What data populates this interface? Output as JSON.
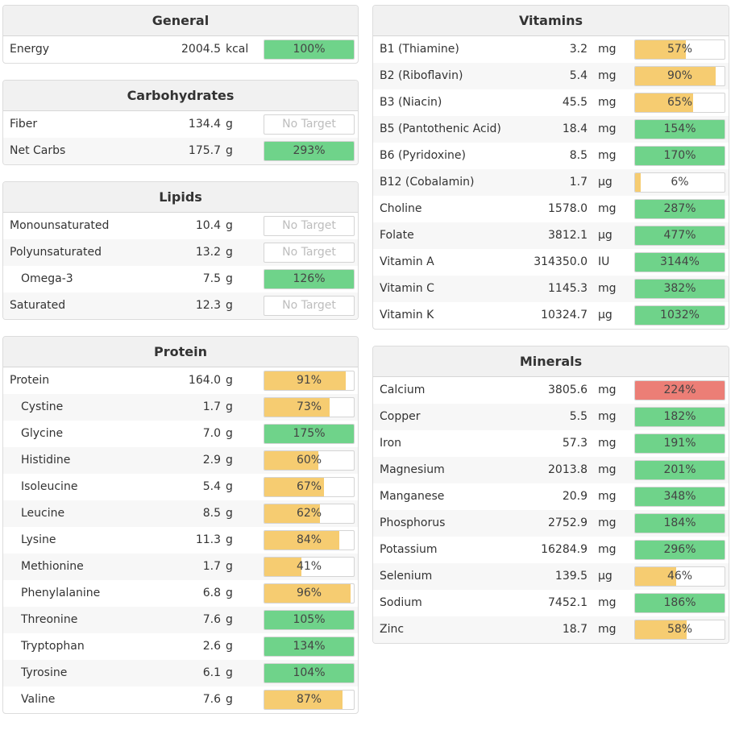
{
  "colors": {
    "green": "#6fd38a",
    "yellow": "#f6cc71",
    "red": "#ec7e76",
    "header_bg": "#f1f1f1"
  },
  "left_panels": [
    {
      "title": "General",
      "rows": [
        {
          "name": "Energy",
          "amount": "2004.5",
          "unit": "kcal",
          "label": "100%",
          "fill": 1.0,
          "color": "green"
        }
      ]
    },
    {
      "title": "Carbohydrates",
      "rows": [
        {
          "name": "Fiber",
          "amount": "134.4",
          "unit": "g",
          "label": "No Target",
          "fill": 0,
          "color": "none"
        },
        {
          "name": "Net Carbs",
          "amount": "175.7",
          "unit": "g",
          "label": "293%",
          "fill": 1.0,
          "color": "green"
        }
      ]
    },
    {
      "title": "Lipids",
      "rows": [
        {
          "name": "Monounsaturated",
          "amount": "10.4",
          "unit": "g",
          "label": "No Target",
          "fill": 0,
          "color": "none"
        },
        {
          "name": "Polyunsaturated",
          "amount": "13.2",
          "unit": "g",
          "label": "No Target",
          "fill": 0,
          "color": "none"
        },
        {
          "name": "Omega-3",
          "amount": "7.5",
          "unit": "g",
          "label": "126%",
          "fill": 1.0,
          "color": "green",
          "indent": true
        },
        {
          "name": "Saturated",
          "amount": "12.3",
          "unit": "g",
          "label": "No Target",
          "fill": 0,
          "color": "none"
        }
      ]
    },
    {
      "title": "Protein",
      "rows": [
        {
          "name": "Protein",
          "amount": "164.0",
          "unit": "g",
          "label": "91%",
          "fill": 0.91,
          "color": "yellow"
        },
        {
          "name": "Cystine",
          "amount": "1.7",
          "unit": "g",
          "label": "73%",
          "fill": 0.73,
          "color": "yellow",
          "indent": true
        },
        {
          "name": "Glycine",
          "amount": "7.0",
          "unit": "g",
          "label": "175%",
          "fill": 1.0,
          "color": "green",
          "indent": true
        },
        {
          "name": "Histidine",
          "amount": "2.9",
          "unit": "g",
          "label": "60%",
          "fill": 0.6,
          "color": "yellow",
          "indent": true
        },
        {
          "name": "Isoleucine",
          "amount": "5.4",
          "unit": "g",
          "label": "67%",
          "fill": 0.67,
          "color": "yellow",
          "indent": true
        },
        {
          "name": "Leucine",
          "amount": "8.5",
          "unit": "g",
          "label": "62%",
          "fill": 0.62,
          "color": "yellow",
          "indent": true
        },
        {
          "name": "Lysine",
          "amount": "11.3",
          "unit": "g",
          "label": "84%",
          "fill": 0.84,
          "color": "yellow",
          "indent": true
        },
        {
          "name": "Methionine",
          "amount": "1.7",
          "unit": "g",
          "label": "41%",
          "fill": 0.41,
          "color": "yellow",
          "indent": true
        },
        {
          "name": "Phenylalanine",
          "amount": "6.8",
          "unit": "g",
          "label": "96%",
          "fill": 0.96,
          "color": "yellow",
          "indent": true
        },
        {
          "name": "Threonine",
          "amount": "7.6",
          "unit": "g",
          "label": "105%",
          "fill": 1.0,
          "color": "green",
          "indent": true
        },
        {
          "name": "Tryptophan",
          "amount": "2.6",
          "unit": "g",
          "label": "134%",
          "fill": 1.0,
          "color": "green",
          "indent": true
        },
        {
          "name": "Tyrosine",
          "amount": "6.1",
          "unit": "g",
          "label": "104%",
          "fill": 1.0,
          "color": "green",
          "indent": true
        },
        {
          "name": "Valine",
          "amount": "7.6",
          "unit": "g",
          "label": "87%",
          "fill": 0.87,
          "color": "yellow",
          "indent": true
        }
      ]
    }
  ],
  "right_panels": [
    {
      "title": "Vitamins",
      "rows": [
        {
          "name": "B1 (Thiamine)",
          "amount": "3.2",
          "unit": "mg",
          "label": "57%",
          "fill": 0.57,
          "color": "yellow"
        },
        {
          "name": "B2 (Riboflavin)",
          "amount": "5.4",
          "unit": "mg",
          "label": "90%",
          "fill": 0.9,
          "color": "yellow"
        },
        {
          "name": "B3 (Niacin)",
          "amount": "45.5",
          "unit": "mg",
          "label": "65%",
          "fill": 0.65,
          "color": "yellow"
        },
        {
          "name": "B5 (Pantothenic Acid)",
          "amount": "18.4",
          "unit": "mg",
          "label": "154%",
          "fill": 1.0,
          "color": "green"
        },
        {
          "name": "B6 (Pyridoxine)",
          "amount": "8.5",
          "unit": "mg",
          "label": "170%",
          "fill": 1.0,
          "color": "green"
        },
        {
          "name": "B12 (Cobalamin)",
          "amount": "1.7",
          "unit": "µg",
          "label": "6%",
          "fill": 0.06,
          "color": "yellow"
        },
        {
          "name": "Choline",
          "amount": "1578.0",
          "unit": "mg",
          "label": "287%",
          "fill": 1.0,
          "color": "green"
        },
        {
          "name": "Folate",
          "amount": "3812.1",
          "unit": "µg",
          "label": "477%",
          "fill": 1.0,
          "color": "green"
        },
        {
          "name": "Vitamin A",
          "amount": "314350.0",
          "unit": "IU",
          "label": "3144%",
          "fill": 1.0,
          "color": "green"
        },
        {
          "name": "Vitamin C",
          "amount": "1145.3",
          "unit": "mg",
          "label": "382%",
          "fill": 1.0,
          "color": "green"
        },
        {
          "name": "Vitamin K",
          "amount": "10324.7",
          "unit": "µg",
          "label": "1032%",
          "fill": 1.0,
          "color": "green"
        }
      ]
    },
    {
      "title": "Minerals",
      "rows": [
        {
          "name": "Calcium",
          "amount": "3805.6",
          "unit": "mg",
          "label": "224%",
          "fill": 1.0,
          "color": "red"
        },
        {
          "name": "Copper",
          "amount": "5.5",
          "unit": "mg",
          "label": "182%",
          "fill": 1.0,
          "color": "green"
        },
        {
          "name": "Iron",
          "amount": "57.3",
          "unit": "mg",
          "label": "191%",
          "fill": 1.0,
          "color": "green"
        },
        {
          "name": "Magnesium",
          "amount": "2013.8",
          "unit": "mg",
          "label": "201%",
          "fill": 1.0,
          "color": "green"
        },
        {
          "name": "Manganese",
          "amount": "20.9",
          "unit": "mg",
          "label": "348%",
          "fill": 1.0,
          "color": "green"
        },
        {
          "name": "Phosphorus",
          "amount": "2752.9",
          "unit": "mg",
          "label": "184%",
          "fill": 1.0,
          "color": "green"
        },
        {
          "name": "Potassium",
          "amount": "16284.9",
          "unit": "mg",
          "label": "296%",
          "fill": 1.0,
          "color": "green"
        },
        {
          "name": "Selenium",
          "amount": "139.5",
          "unit": "µg",
          "label": "46%",
          "fill": 0.46,
          "color": "yellow"
        },
        {
          "name": "Sodium",
          "amount": "7452.1",
          "unit": "mg",
          "label": "186%",
          "fill": 1.0,
          "color": "green"
        },
        {
          "name": "Zinc",
          "amount": "18.7",
          "unit": "mg",
          "label": "58%",
          "fill": 0.58,
          "color": "yellow"
        }
      ]
    }
  ]
}
